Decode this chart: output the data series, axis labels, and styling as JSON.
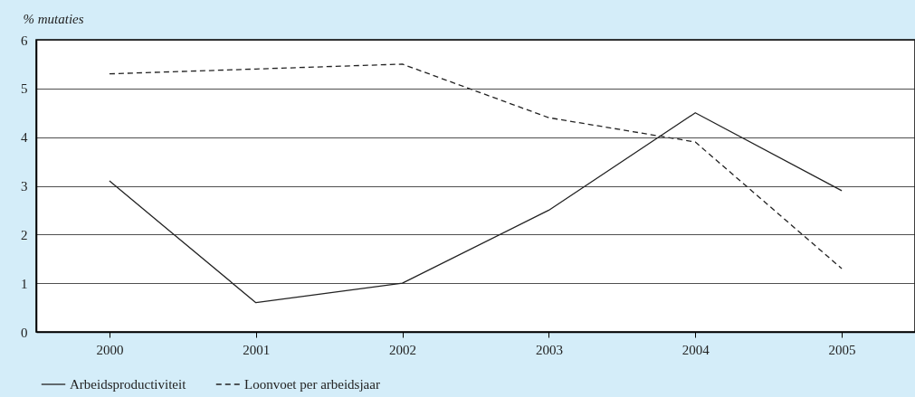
{
  "chart_data": {
    "type": "line",
    "ylabel": "% mutaties",
    "categories": [
      "2000",
      "2001",
      "2002",
      "2003",
      "2004",
      "2005"
    ],
    "series": [
      {
        "name": "Arbeidsproductiviteit",
        "color": "#222222",
        "line_style": "solid",
        "values": [
          3.1,
          0.6,
          1.0,
          2.5,
          4.5,
          2.9
        ]
      },
      {
        "name": "Loonvoet per arbeidsjaar",
        "color": "#222222",
        "line_style": "dashed",
        "values": [
          5.3,
          5.4,
          5.5,
          4.4,
          3.9,
          1.3
        ]
      }
    ],
    "ylim": [
      0,
      6
    ],
    "yticks": [
      0,
      1,
      2,
      3,
      4,
      5,
      6
    ],
    "grid": "y",
    "legend": "bottom left",
    "marker": "none"
  }
}
